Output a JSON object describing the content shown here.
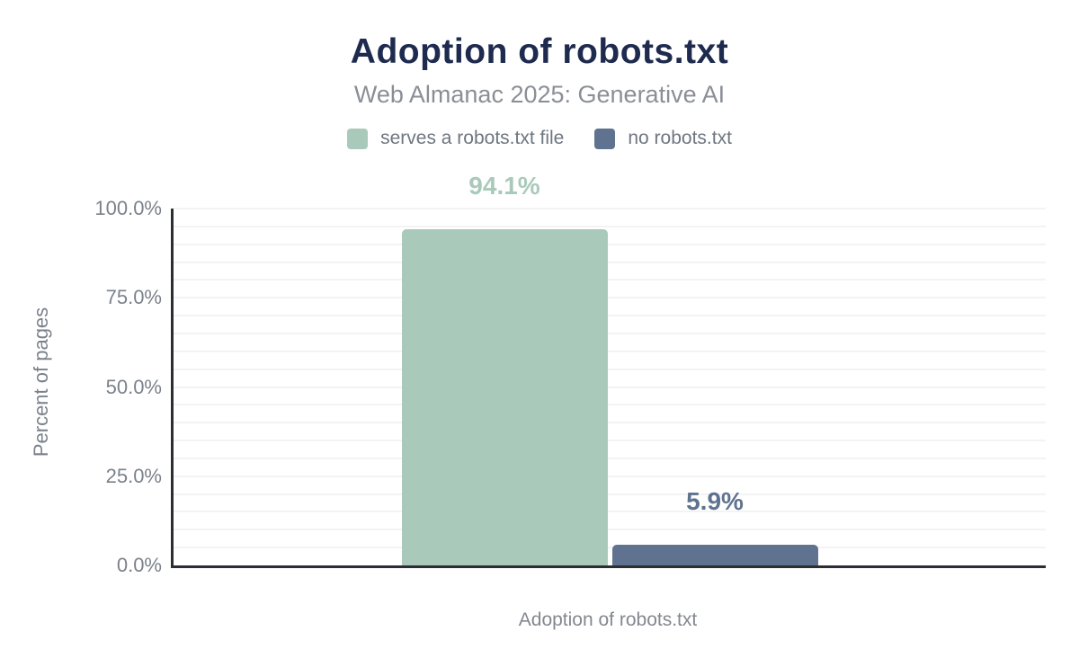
{
  "header": {
    "title": "Adoption of robots.txt",
    "subtitle": "Web Almanac 2025: Generative AI"
  },
  "legend": [
    {
      "label": "serves a robots.txt file",
      "color": "#a9caba"
    },
    {
      "label": "no robots.txt",
      "color": "#5f7390"
    }
  ],
  "chart_data": {
    "type": "bar",
    "title": "Adoption of robots.txt",
    "subtitle": "Web Almanac 2025: Generative AI",
    "categories": [
      "Adoption of robots.txt"
    ],
    "series": [
      {
        "name": "serves a robots.txt file",
        "value": 94.1,
        "data_label": "94.1%",
        "color": "#a9caba"
      },
      {
        "name": "no robots.txt",
        "value": 5.9,
        "data_label": "5.9%",
        "color": "#5f7390"
      }
    ],
    "xlabel": "Adoption of robots.txt",
    "ylabel": "Percent of pages",
    "ylim": [
      0,
      100
    ],
    "yticks": [
      {
        "label": "0.0%",
        "value": 0
      },
      {
        "label": "25.0%",
        "value": 25
      },
      {
        "label": "50.0%",
        "value": 50
      },
      {
        "label": "75.0%",
        "value": 75
      },
      {
        "label": "100.0%",
        "value": 100
      }
    ],
    "grid": true,
    "grid_step_pct": 5,
    "legend_position": "top"
  },
  "colors": {
    "title_text": "#1e2b4e",
    "subtitle_text": "#8a8f96",
    "legend_text": "#6e7680",
    "tick_text": "#7b828b",
    "axis_line": "#2b2e33",
    "gridline": "#f3f3f3",
    "background": "#ffffff"
  }
}
